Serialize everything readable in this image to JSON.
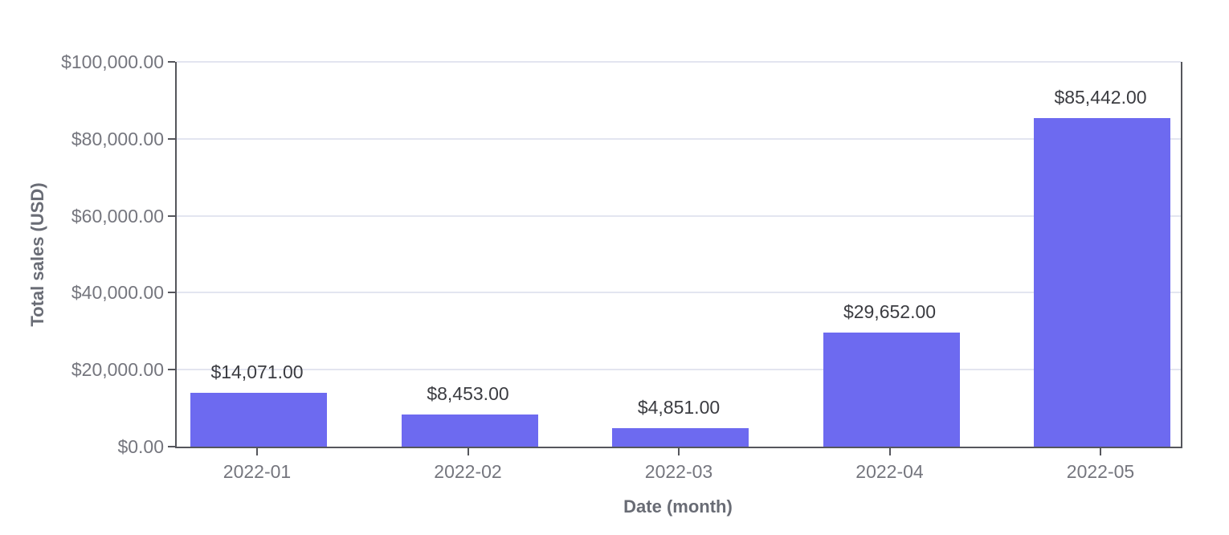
{
  "chart_data": {
    "type": "bar",
    "title": "",
    "xlabel": "Date (month)",
    "ylabel": "Total sales (USD)",
    "categories": [
      "2022-01",
      "2022-02",
      "2022-03",
      "2022-04",
      "2022-05"
    ],
    "values": [
      14071,
      8453,
      4851,
      29652,
      85442
    ],
    "value_labels": [
      "$14,071.00",
      "$8,453.00",
      "$4,851.00",
      "$29,652.00",
      "$85,442.00"
    ],
    "ylim": [
      0,
      100000
    ],
    "ytick_values": [
      0,
      20000,
      40000,
      60000,
      80000,
      100000
    ],
    "ytick_labels": [
      "$0.00",
      "$20,000.00",
      "$40,000.00",
      "$60,000.00",
      "$80,000.00",
      "$100,000.00"
    ],
    "grid": true,
    "legend": "none",
    "colors": {
      "bar": "#6D6AF0",
      "gridline": "#E3E5F0",
      "axis_line": "#55565C",
      "tick_label": "#75767E",
      "data_label": "#3B3C41",
      "axis_title": "#696C75"
    }
  }
}
